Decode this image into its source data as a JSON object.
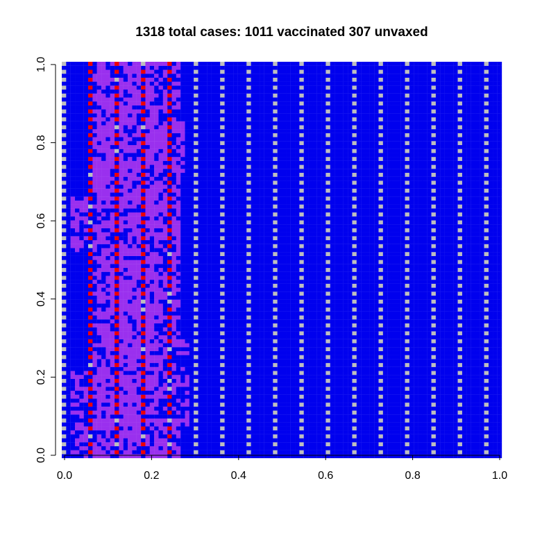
{
  "chart_data": {
    "type": "heatmap",
    "title": "1318 total cases: 1011 vaccinated 307 unvaxed",
    "xlabel": "",
    "ylabel": "",
    "xlim": [
      0,
      1
    ],
    "ylim": [
      0,
      1
    ],
    "x_ticks": [
      "0.0",
      "0.2",
      "0.4",
      "0.6",
      "0.8",
      "1.0"
    ],
    "y_ticks": [
      "0.0",
      "0.2",
      "0.4",
      "0.6",
      "0.8",
      "1.0"
    ],
    "grid": "100x100 cells",
    "unvaccinated_column_period": 6,
    "unvaccinated_column_offset": 0,
    "colors": {
      "susceptible_vaccinated": "#0000ee",
      "susceptible_unvaccinated": "#bebebe",
      "infected_vaccinated": "#9a30ee",
      "infected_unvaccinated": "#ee0000",
      "background": "#ffffff"
    },
    "outbreak_region": [
      {
        "x": [
          0.02,
          0.08
        ],
        "y": [
          0.0,
          0.22
        ]
      },
      {
        "x": [
          0.02,
          0.06
        ],
        "y": [
          0.52,
          0.66
        ]
      },
      {
        "x": [
          0.06,
          0.08
        ],
        "y": [
          0.74,
          0.84
        ]
      },
      {
        "x": [
          0.06,
          0.27
        ],
        "y": [
          0.0,
          1.0
        ]
      },
      {
        "x": [
          0.22,
          0.29
        ],
        "y": [
          0.08,
          0.3
        ]
      },
      {
        "x": [
          0.22,
          0.28
        ],
        "y": [
          0.72,
          0.86
        ]
      }
    ]
  }
}
